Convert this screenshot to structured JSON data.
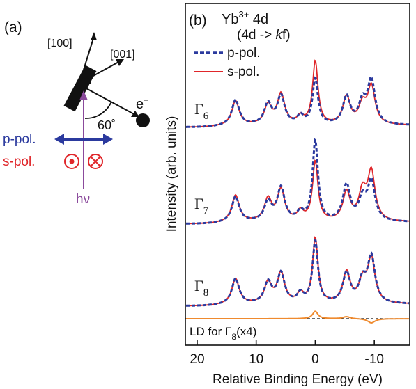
{
  "panel_a": {
    "label": "(a)",
    "dir_100": "[100]",
    "dir_001": "[001]",
    "electron": "e",
    "electron_sup": "−",
    "angle": "60˚",
    "ppol": "p-pol.",
    "spol": "s-pol.",
    "photon": "hν",
    "colors": {
      "ppol": "#2b3a9e",
      "spol": "#e0262a",
      "photon": "#8b4a9c",
      "black": "#111111"
    }
  },
  "chart_data": {
    "type": "line",
    "panel_label": "(b)",
    "title_line1": "Yb",
    "title_sup": "3+",
    "title_line1_tail": " 4d",
    "title_line2": "(4d -> ",
    "title_line2_italic": "k",
    "title_line2_tail": "f)",
    "xlabel": "Relative Binding Energy (eV)",
    "ylabel": "Intensity (arb. units)",
    "xlim": [
      22,
      -16
    ],
    "x_ticks": [
      20,
      10,
      0,
      -10
    ],
    "x_tick_labels": [
      "20",
      "10",
      "0",
      "-10"
    ],
    "grid": false,
    "legend_position": "top",
    "legend": [
      {
        "name": "p-pol.",
        "color": "#2b3a9e",
        "style": "dashed"
      },
      {
        "name": "s-pol.",
        "color": "#e0262a",
        "style": "solid"
      }
    ],
    "ld_label": "LD for Γ",
    "ld_label_sub": "8",
    "ld_label_tail": "(x4)",
    "ld_color": "#ef8a2e",
    "groups": [
      {
        "name": "Γ",
        "sub": "6",
        "peaks": [
          {
            "x": 13.5,
            "p": 0.55,
            "s": 0.53
          },
          {
            "x": 8.0,
            "p": 0.45,
            "s": 0.42
          },
          {
            "x": 5.8,
            "p": 0.62,
            "s": 0.66
          },
          {
            "x": 2.5,
            "p": 0.18,
            "s": 0.16
          },
          {
            "x": 0.0,
            "p": 1.0,
            "s": 1.38
          },
          {
            "x": -5.3,
            "p": 0.6,
            "s": 0.6
          },
          {
            "x": -8.0,
            "p": 0.45,
            "s": 0.4
          },
          {
            "x": -9.5,
            "p": 0.95,
            "s": 0.82
          }
        ]
      },
      {
        "name": "Γ",
        "sub": "7",
        "peaks": [
          {
            "x": 13.5,
            "p": 0.55,
            "s": 0.58
          },
          {
            "x": 8.0,
            "p": 0.42,
            "s": 0.48
          },
          {
            "x": 5.8,
            "p": 0.72,
            "s": 0.68
          },
          {
            "x": 2.5,
            "p": 0.18,
            "s": 0.2
          },
          {
            "x": 0.0,
            "p": 1.75,
            "s": 1.3
          },
          {
            "x": -5.3,
            "p": 0.78,
            "s": 0.62
          },
          {
            "x": -8.0,
            "p": 0.45,
            "s": 0.6
          },
          {
            "x": -9.5,
            "p": 0.85,
            "s": 1.05
          }
        ]
      },
      {
        "name": "Γ",
        "sub": "8",
        "peaks": [
          {
            "x": 13.5,
            "p": 0.55,
            "s": 0.55
          },
          {
            "x": 8.0,
            "p": 0.45,
            "s": 0.45
          },
          {
            "x": 5.8,
            "p": 0.65,
            "s": 0.65
          },
          {
            "x": 2.5,
            "p": 0.2,
            "s": 0.2
          },
          {
            "x": 0.0,
            "p": 1.35,
            "s": 1.42
          },
          {
            "x": -5.3,
            "p": 0.65,
            "s": 0.67
          },
          {
            "x": -8.0,
            "p": 0.45,
            "s": 0.45
          },
          {
            "x": -9.5,
            "p": 1.0,
            "s": 0.96
          }
        ]
      }
    ]
  }
}
